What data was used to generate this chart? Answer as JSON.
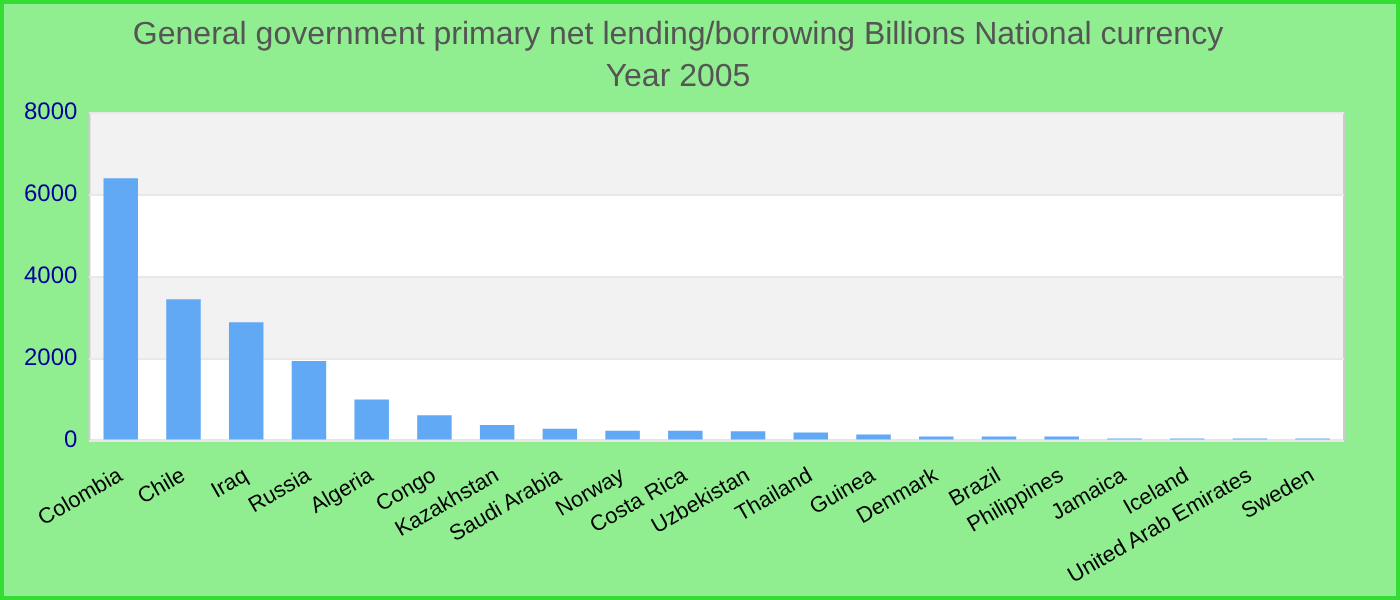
{
  "chart_data": {
    "type": "bar",
    "title": "General government primary net lending/borrowing Billions National currency",
    "subtitle": "Year 2005",
    "categories": [
      "Colombia",
      "Chile",
      "Iraq",
      "Russia",
      "Algeria",
      "Congo",
      "Kazakhstan",
      "Saudi Arabia",
      "Norway",
      "Costa Rica",
      "Uzbekistan",
      "Thailand",
      "Guinea",
      "Denmark",
      "Brazil",
      "Philippines",
      "Jamaica",
      "Iceland",
      "United Arab Emirates",
      "Sweden"
    ],
    "values": [
      6400,
      3450,
      2890,
      1940,
      1000,
      620,
      380,
      290,
      240,
      240,
      230,
      200,
      150,
      100,
      100,
      100,
      50,
      50,
      50,
      50
    ],
    "color": "#62a9f5",
    "ylim": [
      0,
      8000
    ],
    "yticks": [
      0,
      2000,
      4000,
      6000,
      8000
    ],
    "grid": "y",
    "legend": false
  }
}
